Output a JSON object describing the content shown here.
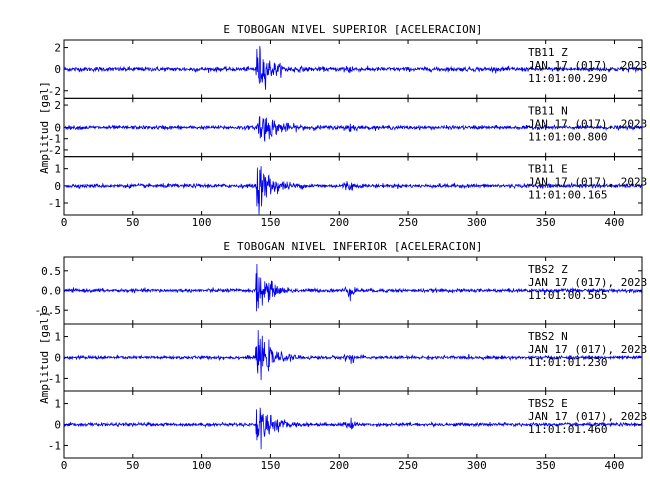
{
  "chart_data": [
    {
      "type": "line",
      "title": "E TOBOGAN NIVEL SUPERIOR [ACELERACION]",
      "ylabel": "Amplitud [gal]",
      "xlabel": "",
      "xlim": [
        0,
        420
      ],
      "xticks": [
        0,
        50,
        100,
        150,
        200,
        250,
        300,
        350,
        400
      ],
      "grid": false,
      "series": [
        {
          "name": "TB11 Z",
          "station": "TB11",
          "component": "Z",
          "date": "JAN 17 (017), 2023",
          "time": "11:01:00.290",
          "color": "#0000ee",
          "ylim": [
            -2.7,
            2.7
          ],
          "yticks": [
            2,
            0,
            -2
          ],
          "noise": 0.18,
          "peak": 2.6,
          "event_start": 139,
          "decay": 8,
          "secondary_time": 207,
          "secondary_amp": 0.35
        },
        {
          "name": "TB11 N",
          "station": "TB11",
          "component": "N",
          "date": "JAN 17 (017), 2023",
          "time": "11:01:00.800",
          "color": "#0000ee",
          "ylim": [
            -2.6,
            2.6
          ],
          "yticks": [
            2,
            0,
            -1,
            -2
          ],
          "noise": 0.15,
          "peak": 1.9,
          "event_start": 140,
          "decay": 10,
          "secondary_time": 208,
          "secondary_amp": 0.3
        },
        {
          "name": "TB11 E",
          "station": "TB11",
          "component": "E",
          "date": "JAN 17 (017), 2023",
          "time": "11:01:00.165",
          "color": "#0000ee",
          "ylim": [
            -1.7,
            1.7
          ],
          "yticks": [
            1,
            0,
            -1
          ],
          "noise": 0.1,
          "peak": 1.6,
          "event_start": 139,
          "decay": 9,
          "secondary_time": 207,
          "secondary_amp": 0.25
        }
      ]
    },
    {
      "type": "line",
      "title": "E TOBOGAN NIVEL INFERIOR [ACELERACION]",
      "ylabel": "Amplitud [gal]",
      "xlabel": "",
      "xlim": [
        0,
        420
      ],
      "xticks": [
        0,
        50,
        100,
        150,
        200,
        250,
        300,
        350,
        400
      ],
      "grid": false,
      "series": [
        {
          "name": "TBS2 Z",
          "station": "TBS2",
          "component": "Z",
          "date": "JAN 17 (017), 2023",
          "time": "11:01:00.565",
          "color": "#0000ee",
          "ylim": [
            -0.85,
            0.85
          ],
          "yticks": [
            0.5,
            0.0,
            -0.5
          ],
          "tick_decimals": 1,
          "noise": 0.04,
          "peak": 0.8,
          "event_start": 139,
          "decay": 7,
          "secondary_time": 208,
          "secondary_amp": 0.12
        },
        {
          "name": "TBS2 N",
          "station": "TBS2",
          "component": "N",
          "date": "JAN 17 (017), 2023",
          "time": "11:01:01.230",
          "color": "#0000ee",
          "ylim": [
            -1.6,
            1.6
          ],
          "yticks": [
            1,
            0,
            -1
          ],
          "noise": 0.07,
          "peak": 1.45,
          "event_start": 139,
          "decay": 8,
          "secondary_time": 208,
          "secondary_amp": 0.2
        },
        {
          "name": "TBS2 E",
          "station": "TBS2",
          "component": "E",
          "date": "JAN 17 (017), 2023",
          "time": "11:01:01.460",
          "color": "#0000ee",
          "ylim": [
            -1.6,
            1.6
          ],
          "yticks": [
            1,
            0,
            -1
          ],
          "noise": 0.07,
          "peak": 1.5,
          "event_start": 139,
          "decay": 8,
          "secondary_time": 208,
          "secondary_amp": 0.2
        }
      ]
    }
  ]
}
